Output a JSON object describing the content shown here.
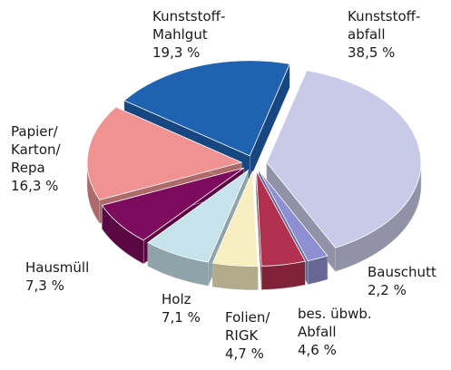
{
  "chart_data": {
    "type": "pie",
    "categories": [
      "Kunststoff-\nabfall",
      "Bauschutt",
      "bes. übwb.\nAbfall",
      "Folien/\nRIGK",
      "Holz",
      "Hausmüll",
      "Papier/\nKarton/\nRepa",
      "Kunststoff-\nMahlgut"
    ],
    "values": [
      38.5,
      2.2,
      4.6,
      4.7,
      7.1,
      7.3,
      16.3,
      19.3
    ],
    "value_labels": [
      "38,5 %",
      "2,2 %",
      "4,6 %",
      "4,7 %",
      "7,1 %",
      "7,3 %",
      "16,3 %",
      "19,3 %"
    ],
    "colors": [
      "#c9c9e8",
      "#8e8ed2",
      "#b2304f",
      "#f7efc0",
      "#c6e3ec",
      "#7e0a5e",
      "#f19292",
      "#2062b2"
    ]
  }
}
